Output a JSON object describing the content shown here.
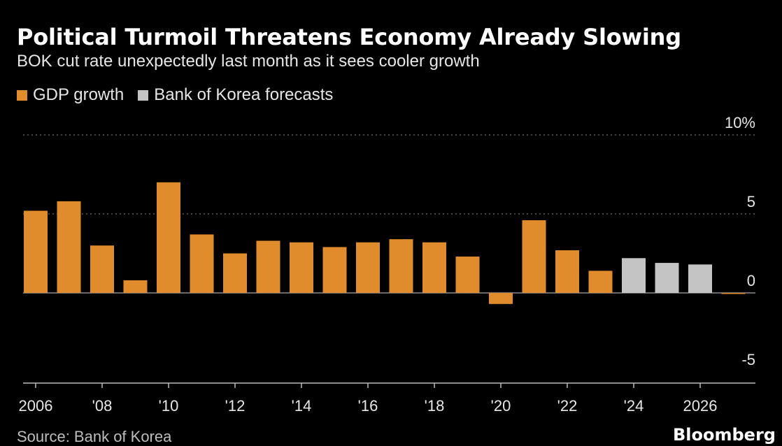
{
  "chart_data": {
    "type": "bar",
    "title": "Political Turmoil Threatens Economy Already Slowing",
    "subtitle": "BOK cut rate unexpectedly last month as it sees cooler growth",
    "legend": [
      {
        "label": "GDP growth",
        "color": "#e08c2c"
      },
      {
        "label": "Bank of Korea forecasts",
        "color": "#c4c4c4"
      }
    ],
    "categories": [
      "2006",
      "2007",
      "2008",
      "2009",
      "2010",
      "2011",
      "2012",
      "2013",
      "2014",
      "2015",
      "2016",
      "2017",
      "2018",
      "2019",
      "2020",
      "2021",
      "2022",
      "2023",
      "2024",
      "2025",
      "2026",
      "2027"
    ],
    "x_tick_labels": [
      "2006",
      "'08",
      "'10",
      "'12",
      "'14",
      "'16",
      "'18",
      "'20",
      "'22",
      "'24",
      "2026"
    ],
    "series": [
      {
        "name": "GDP growth",
        "values": [
          5.2,
          5.8,
          3.0,
          0.8,
          7.0,
          3.7,
          2.5,
          3.3,
          3.2,
          2.9,
          3.2,
          3.4,
          3.2,
          2.3,
          -0.7,
          4.6,
          2.7,
          1.4,
          null,
          null,
          null,
          0.0
        ]
      },
      {
        "name": "Bank of Korea forecasts",
        "values": [
          null,
          null,
          null,
          null,
          null,
          null,
          null,
          null,
          null,
          null,
          null,
          null,
          null,
          null,
          null,
          null,
          null,
          null,
          2.2,
          1.9,
          1.8,
          null
        ]
      }
    ],
    "y_tick_labels": [
      "10%",
      "5",
      "0",
      "-5"
    ],
    "y_ticks": [
      10,
      5,
      0,
      -5
    ],
    "ylim": [
      -5,
      10
    ],
    "grid": true,
    "source": "Source: Bank of Korea",
    "brand": "Bloomberg"
  }
}
